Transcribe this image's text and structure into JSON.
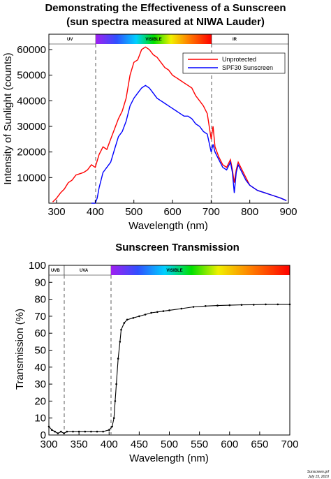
{
  "chart_data": [
    {
      "type": "line",
      "title": "Demonstrating the Effectiveness of a Sunscreen",
      "subtitle": "(sun spectra measured at NIWA Lauder)",
      "xlabel": "Wavelength (nm)",
      "ylabel": "Intensity of Sunlight (counts)",
      "xlim": [
        280,
        900
      ],
      "ylim": [
        0,
        66000
      ],
      "xticks": [
        "300",
        "400",
        "500",
        "600",
        "700",
        "800",
        "900"
      ],
      "yticks": [
        "10000",
        "20000",
        "30000",
        "40000",
        "50000",
        "60000"
      ],
      "grid": false,
      "legend_position": "top-right",
      "bands": [
        {
          "label": "UV",
          "from": 280,
          "to": 400
        },
        {
          "label": "VISIBLE",
          "from": 400,
          "to": 700
        },
        {
          "label": "IR",
          "from": 700,
          "to": 900
        }
      ],
      "band_boundaries": [
        400,
        700
      ],
      "series": [
        {
          "name": "Unprotected",
          "color": "#ff0000",
          "x": [
            290,
            300,
            310,
            320,
            330,
            340,
            350,
            360,
            370,
            380,
            390,
            400,
            410,
            420,
            430,
            440,
            450,
            460,
            470,
            480,
            490,
            500,
            510,
            520,
            530,
            540,
            550,
            560,
            570,
            580,
            590,
            600,
            610,
            620,
            630,
            640,
            650,
            660,
            670,
            680,
            690,
            700,
            705,
            710,
            720,
            730,
            740,
            750,
            755,
            760,
            765,
            770,
            780,
            790,
            800,
            820,
            840,
            860,
            880,
            895
          ],
          "y": [
            500,
            2000,
            4000,
            5500,
            8000,
            9000,
            11000,
            11500,
            12000,
            13000,
            15000,
            14000,
            19000,
            22000,
            21000,
            25000,
            29000,
            33000,
            36000,
            41000,
            50000,
            55000,
            56000,
            60000,
            61000,
            60000,
            58000,
            57000,
            55000,
            53000,
            52000,
            50000,
            49000,
            48000,
            47000,
            46000,
            45000,
            42000,
            40000,
            38000,
            35000,
            25000,
            30000,
            22000,
            18000,
            15000,
            14000,
            17000,
            13000,
            8000,
            13000,
            16000,
            13000,
            10000,
            7000,
            5000,
            4000,
            3000,
            2000,
            1000
          ]
        },
        {
          "name": "SPF30 Sunscreen",
          "color": "#0000ff",
          "x": [
            390,
            400,
            405,
            410,
            420,
            430,
            440,
            450,
            460,
            470,
            480,
            490,
            500,
            510,
            520,
            530,
            540,
            550,
            560,
            570,
            580,
            590,
            600,
            610,
            620,
            630,
            640,
            650,
            660,
            670,
            680,
            690,
            700,
            705,
            710,
            720,
            730,
            740,
            750,
            755,
            760,
            765,
            770,
            780,
            790,
            800,
            820,
            840,
            860,
            880,
            895
          ],
          "y": [
            0,
            0,
            2000,
            6000,
            12000,
            14000,
            16000,
            21000,
            26000,
            28000,
            32000,
            38000,
            41000,
            43000,
            45000,
            46000,
            45000,
            43000,
            41000,
            40000,
            39000,
            38000,
            37000,
            36000,
            35000,
            34000,
            34000,
            33000,
            31000,
            30000,
            28000,
            27000,
            20000,
            23000,
            20000,
            17000,
            14000,
            13000,
            16000,
            12000,
            4000,
            12000,
            15000,
            12000,
            9000,
            7000,
            5000,
            4000,
            3000,
            2000,
            1000
          ]
        }
      ]
    },
    {
      "type": "scatter",
      "title": "Sunscreen Transmission",
      "xlabel": "Wavelength (nm)",
      "ylabel": "Transmission (%)",
      "xlim": [
        300,
        700
      ],
      "ylim": [
        0,
        100
      ],
      "xticks": [
        "300",
        "350",
        "400",
        "450",
        "500",
        "550",
        "600",
        "650",
        "700"
      ],
      "yticks": [
        "0",
        "10",
        "20",
        "30",
        "40",
        "50",
        "60",
        "70",
        "80",
        "90",
        "100"
      ],
      "grid": false,
      "bands": [
        {
          "label": "UVB",
          "from": 300,
          "to": 320
        },
        {
          "label": "UVA",
          "from": 320,
          "to": 400
        },
        {
          "label": "VISIBLE",
          "from": 400,
          "to": 700
        }
      ],
      "band_boundaries": [
        320,
        400
      ],
      "series": [
        {
          "name": "",
          "color": "#000000",
          "x": [
            300,
            305,
            310,
            315,
            320,
            325,
            330,
            340,
            350,
            360,
            370,
            380,
            390,
            400,
            405,
            408,
            410,
            412,
            415,
            418,
            420,
            425,
            430,
            440,
            450,
            460,
            470,
            480,
            490,
            500,
            520,
            540,
            560,
            580,
            600,
            620,
            640,
            660,
            680,
            700
          ],
          "y": [
            5,
            3,
            2,
            1,
            2,
            1,
            2,
            2,
            2,
            2,
            2,
            2,
            2,
            3,
            5,
            10,
            20,
            30,
            45,
            55,
            62,
            66,
            68,
            69,
            70,
            71,
            72,
            72.5,
            73,
            73.5,
            74.5,
            75.5,
            76,
            76.3,
            76.5,
            76.7,
            76.8,
            77,
            77,
            77
          ]
        }
      ]
    }
  ],
  "footer": {
    "line1": "Sunscreen.grf",
    "line2": "July 15, 2010"
  }
}
